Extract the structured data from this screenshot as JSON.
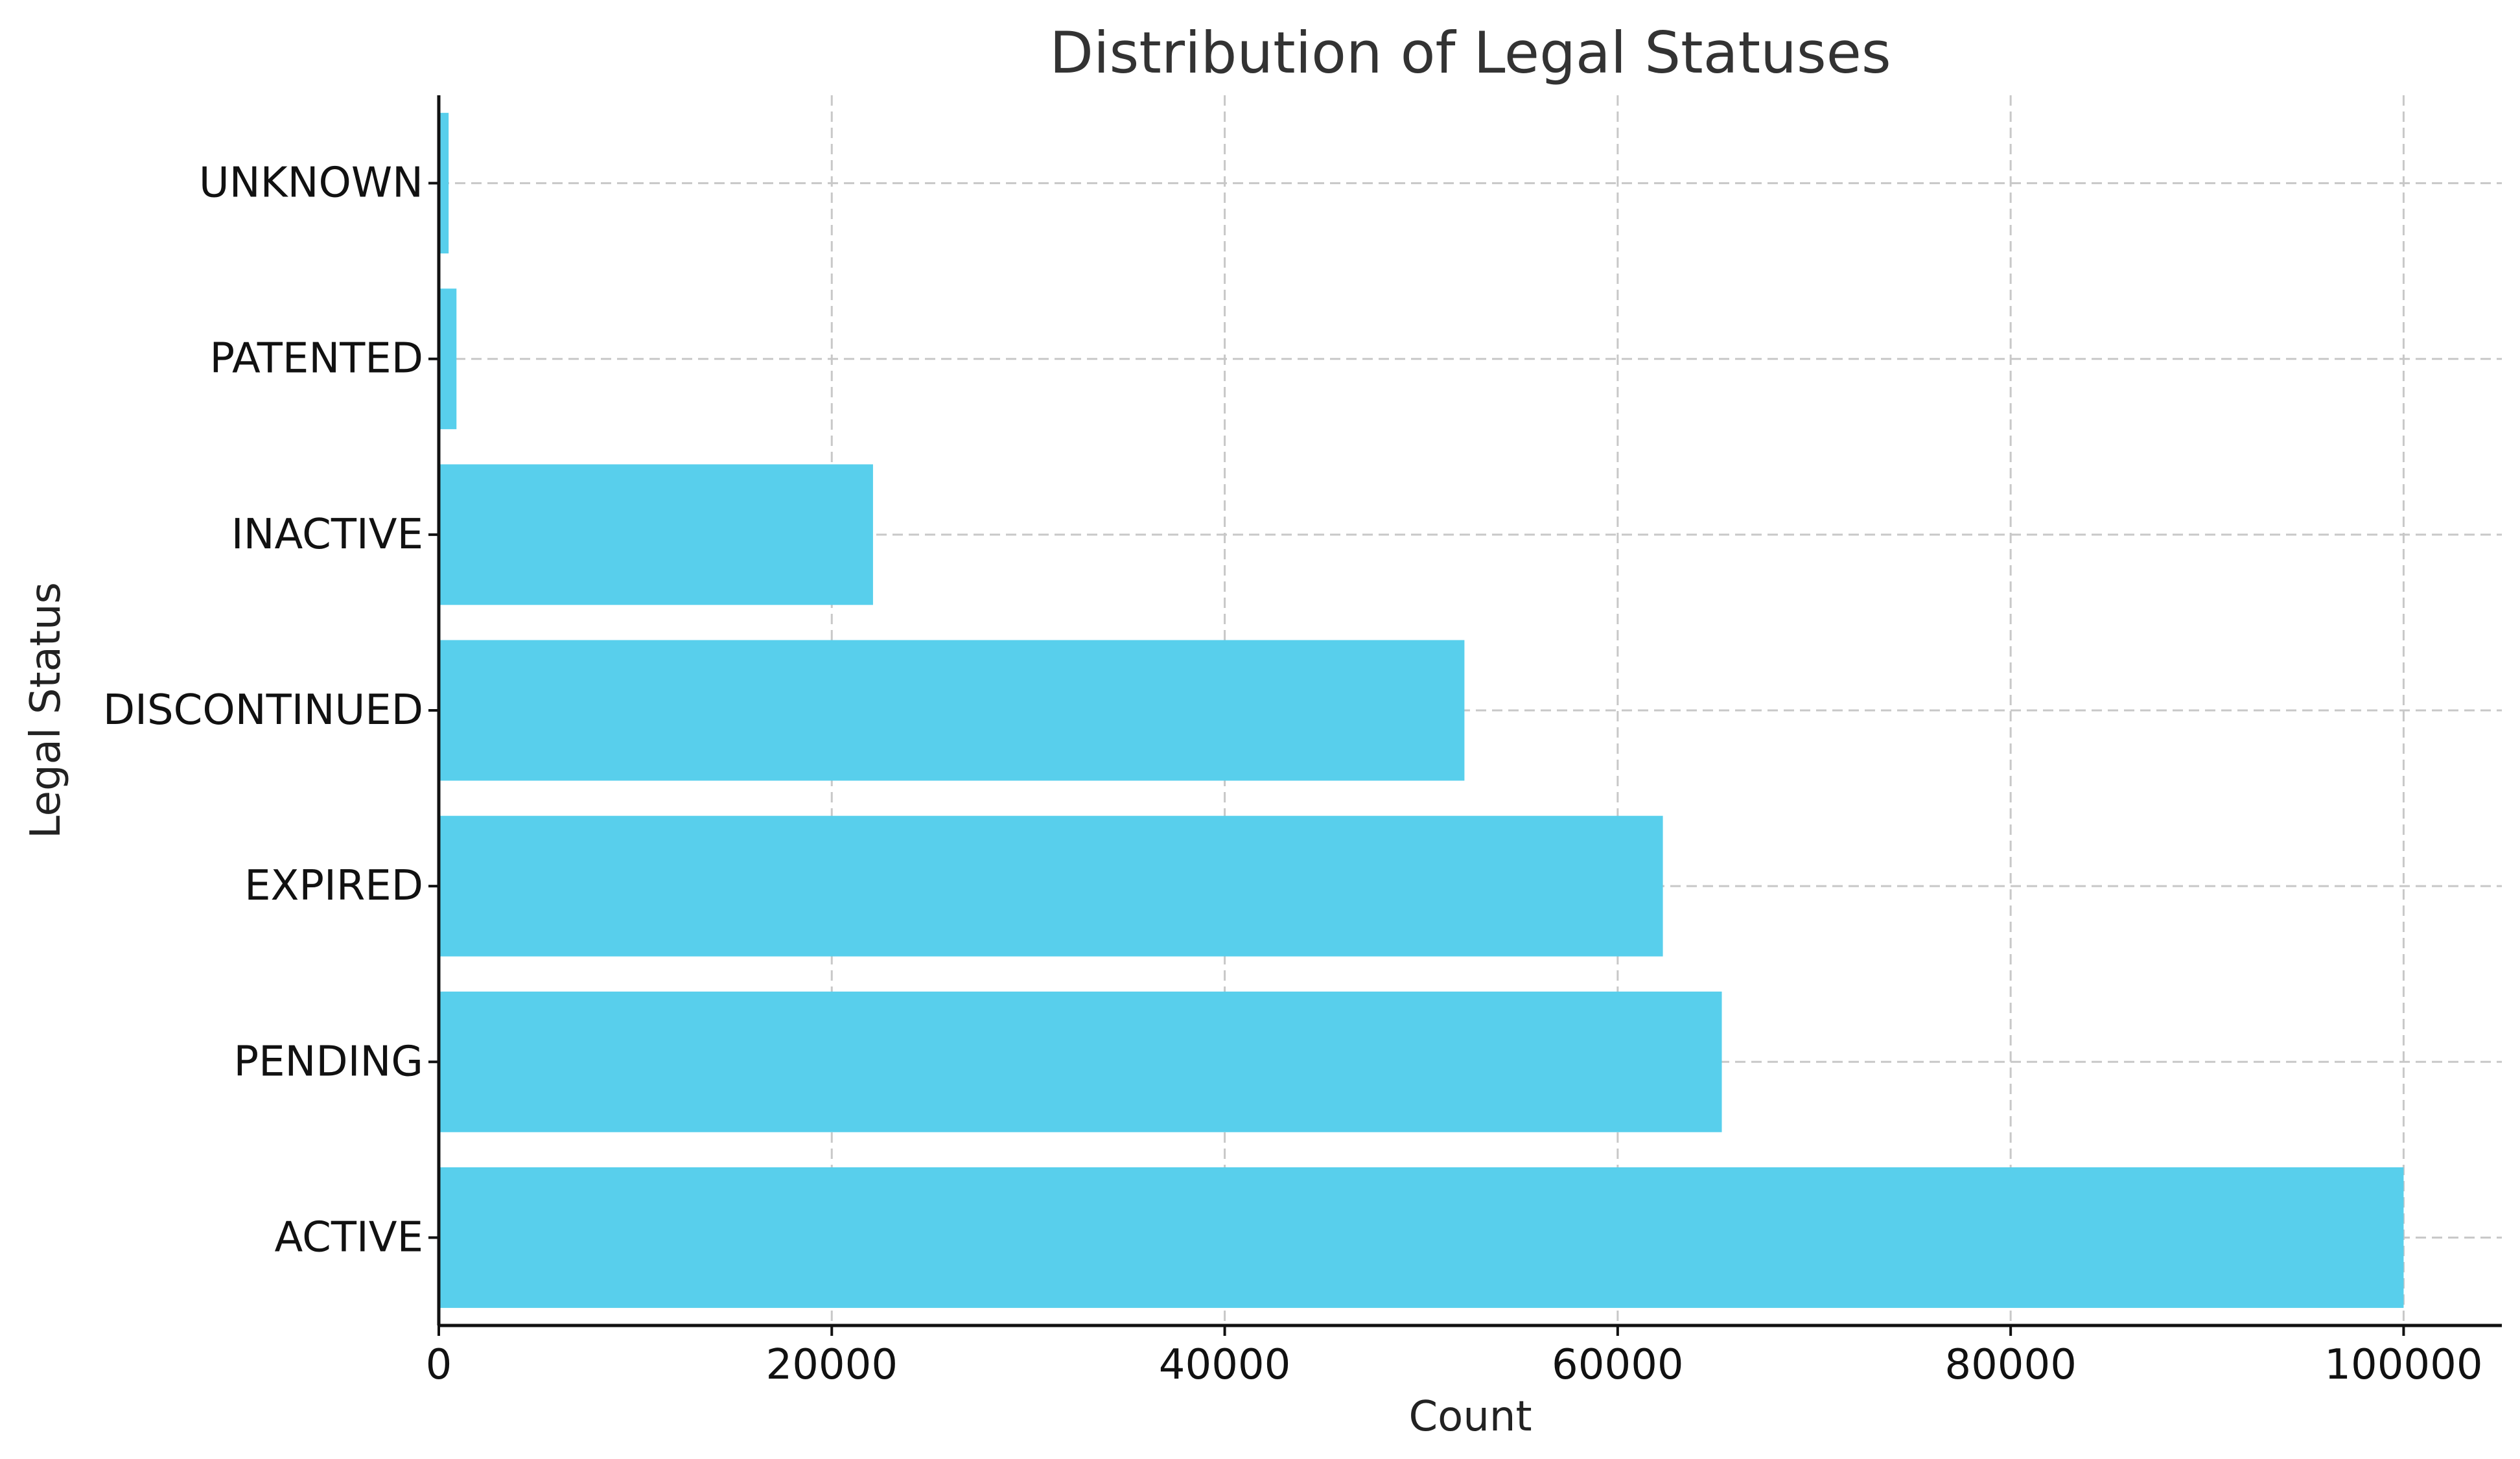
{
  "chart_data": {
    "type": "bar",
    "orientation": "horizontal",
    "title": "Distribution of Legal Statuses",
    "xlabel": "Count",
    "ylabel": "Legal Status",
    "categories": [
      "ACTIVE",
      "PENDING",
      "EXPIRED",
      "DISCONTINUED",
      "INACTIVE",
      "PATENTED",
      "UNKNOWN"
    ],
    "values": [
      100000,
      65300,
      62300,
      52200,
      22100,
      900,
      500
    ],
    "xlim": [
      0,
      105000
    ],
    "xticks": [
      0,
      20000,
      40000,
      60000,
      80000,
      100000
    ],
    "xtick_labels": [
      "0",
      "20000",
      "40000",
      "60000",
      "80000",
      "100000"
    ],
    "grid": true,
    "bar_color": "#58CFEC"
  }
}
